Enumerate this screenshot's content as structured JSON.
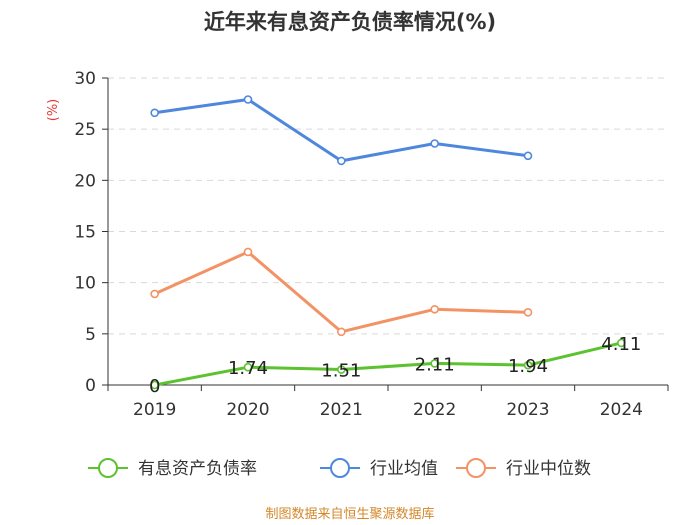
{
  "chart_data": {
    "type": "line",
    "title": "近年来有息资产负债率情况(%)",
    "ylabel": "(%)",
    "xlabel": "",
    "ylim": [
      0,
      30
    ],
    "yticks": [
      0,
      5,
      10,
      15,
      20,
      25,
      30
    ],
    "categories": [
      "2019",
      "2020",
      "2021",
      "2022",
      "2023",
      "2024"
    ],
    "series": [
      {
        "name": "有息资产负债率",
        "color": "#5cc22f",
        "values": [
          0,
          1.74,
          1.51,
          2.11,
          1.94,
          4.11
        ],
        "labels": [
          "0",
          "1.74",
          "1.51",
          "2.11",
          "1.94",
          "4.11"
        ]
      },
      {
        "name": "行业均值",
        "color": "#4f87dd",
        "values": [
          26.6,
          27.9,
          21.9,
          23.6,
          22.4,
          null
        ]
      },
      {
        "name": "行业中位数",
        "color": "#f39264",
        "values": [
          8.9,
          13.0,
          5.2,
          7.4,
          7.1,
          null
        ]
      }
    ],
    "grid": true,
    "legend_position": "bottom"
  },
  "source": "制图数据来自恒生聚源数据库"
}
